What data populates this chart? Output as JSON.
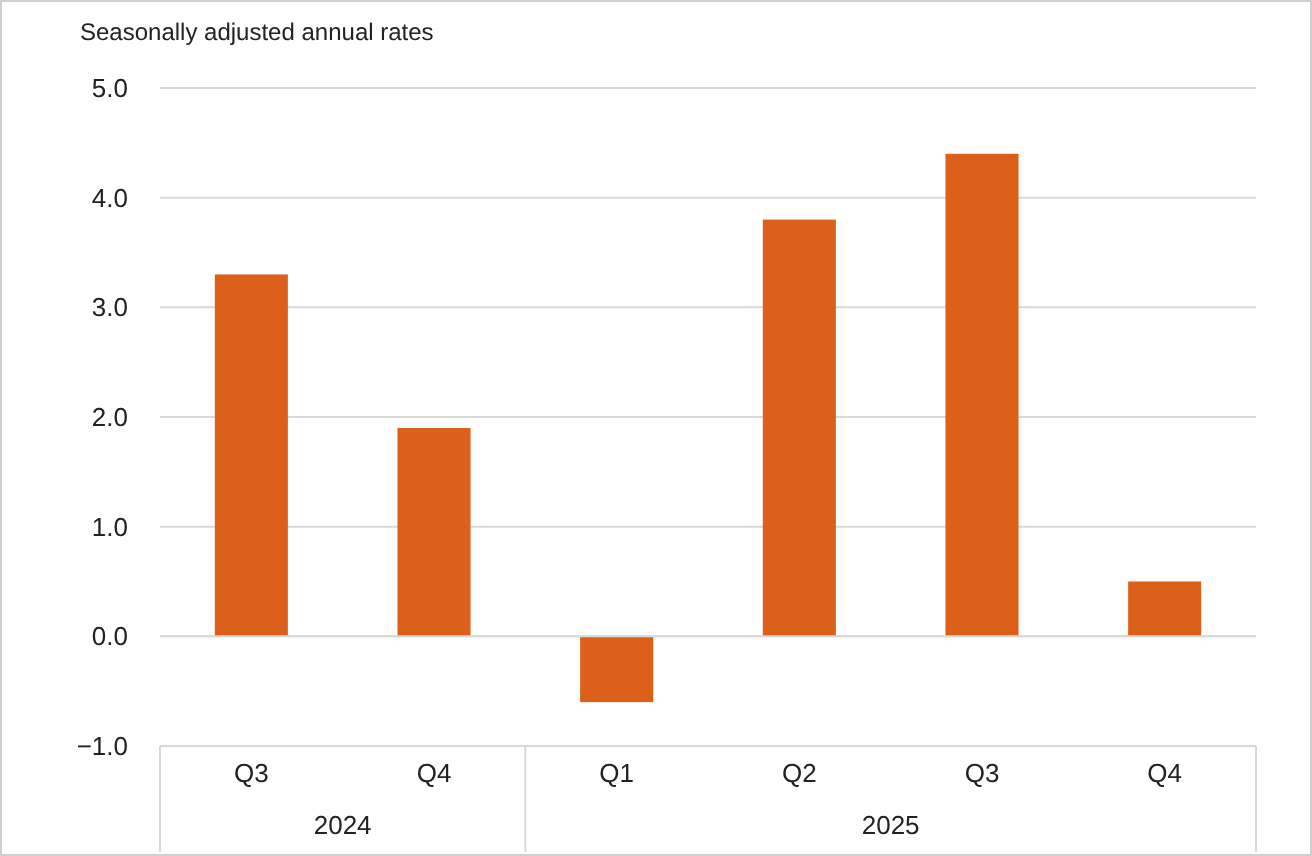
{
  "chart_data": {
    "type": "bar",
    "ylabel": "Seasonally adjusted annual rates",
    "categories": [
      "Q3",
      "Q4",
      "Q1",
      "Q2",
      "Q3",
      "Q4"
    ],
    "values": [
      3.3,
      1.9,
      -0.6,
      3.8,
      4.4,
      0.5
    ],
    "color": "#dc6019",
    "ylim": [
      -1,
      5
    ],
    "yticks": [
      {
        "value": -1,
        "label": "−1.0"
      },
      {
        "value": 0,
        "label": "0.0"
      },
      {
        "value": 1,
        "label": "1.0"
      },
      {
        "value": 2,
        "label": "2.0"
      },
      {
        "value": 3,
        "label": "3.0"
      },
      {
        "value": 4,
        "label": "4.0"
      },
      {
        "value": 5,
        "label": "5.0"
      }
    ],
    "grid": "y",
    "annotations": [
      "2024",
      "2025"
    ]
  }
}
